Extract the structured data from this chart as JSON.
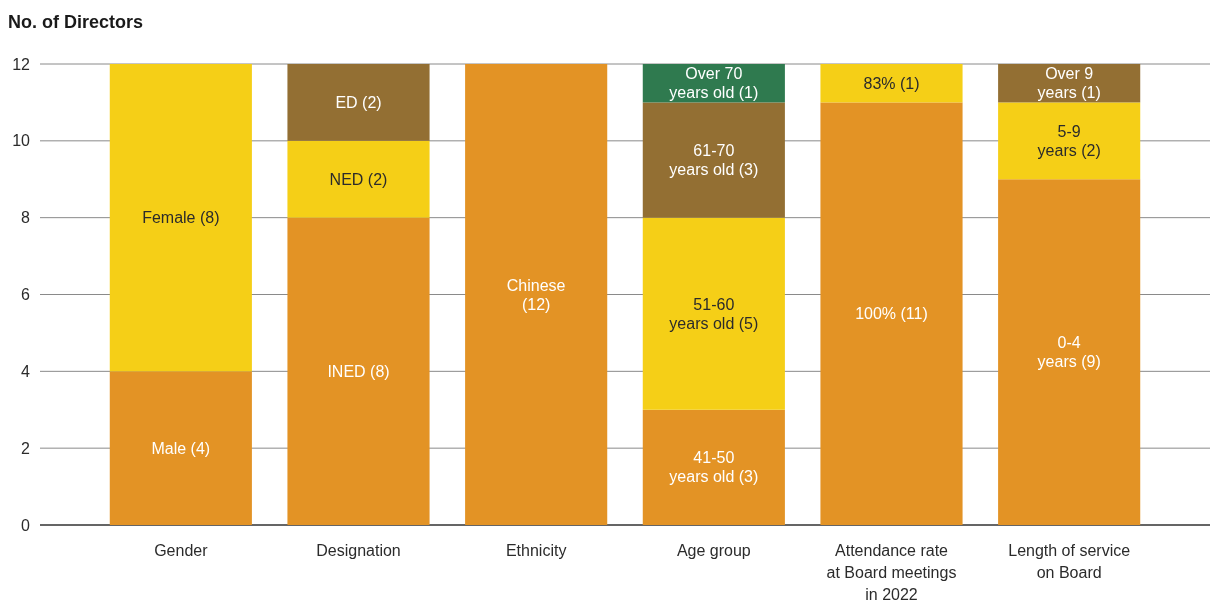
{
  "chart_data": {
    "type": "bar",
    "stacked": true,
    "ylabel": "No. of Directors",
    "categories": [
      "Gender",
      "Designation",
      "Ethnicity",
      "Age group",
      "Attendance rate at Board meetings in 2022",
      "Length of service on Board"
    ],
    "series": [
      {
        "color": "#e39325",
        "values": [
          4,
          8,
          12,
          3,
          11,
          9
        ],
        "value_labels": [
          "Male (4)",
          "INED (8)",
          "Chinese\n(12)",
          "41-50\nyears old (3)",
          "100% (11)",
          "0-4\nyears (9)"
        ]
      },
      {
        "color": "#f5cf17",
        "values": [
          8,
          2,
          null,
          5,
          1,
          2
        ],
        "value_labels": [
          "Female (8)",
          "NED (2)",
          null,
          "51-60\nyears old (5)",
          "83% (1)",
          "5-9\nyears (2)"
        ]
      },
      {
        "color": "#936f33",
        "values": [
          null,
          2,
          null,
          3,
          null,
          1
        ],
        "value_labels": [
          null,
          "ED (2)",
          null,
          "61-70\nyears old (3)",
          null,
          "Over 9\nyears (1)"
        ]
      },
      {
        "color": "#2f7a4f",
        "values": [
          null,
          null,
          null,
          1,
          null,
          null
        ],
        "value_labels": [
          null,
          null,
          null,
          "Over 70\nyears old (1)",
          null,
          null
        ]
      }
    ],
    "ylim": [
      0,
      12
    ],
    "yticks": [
      0,
      2,
      4,
      6,
      8,
      10,
      12
    ],
    "grid": "y"
  }
}
